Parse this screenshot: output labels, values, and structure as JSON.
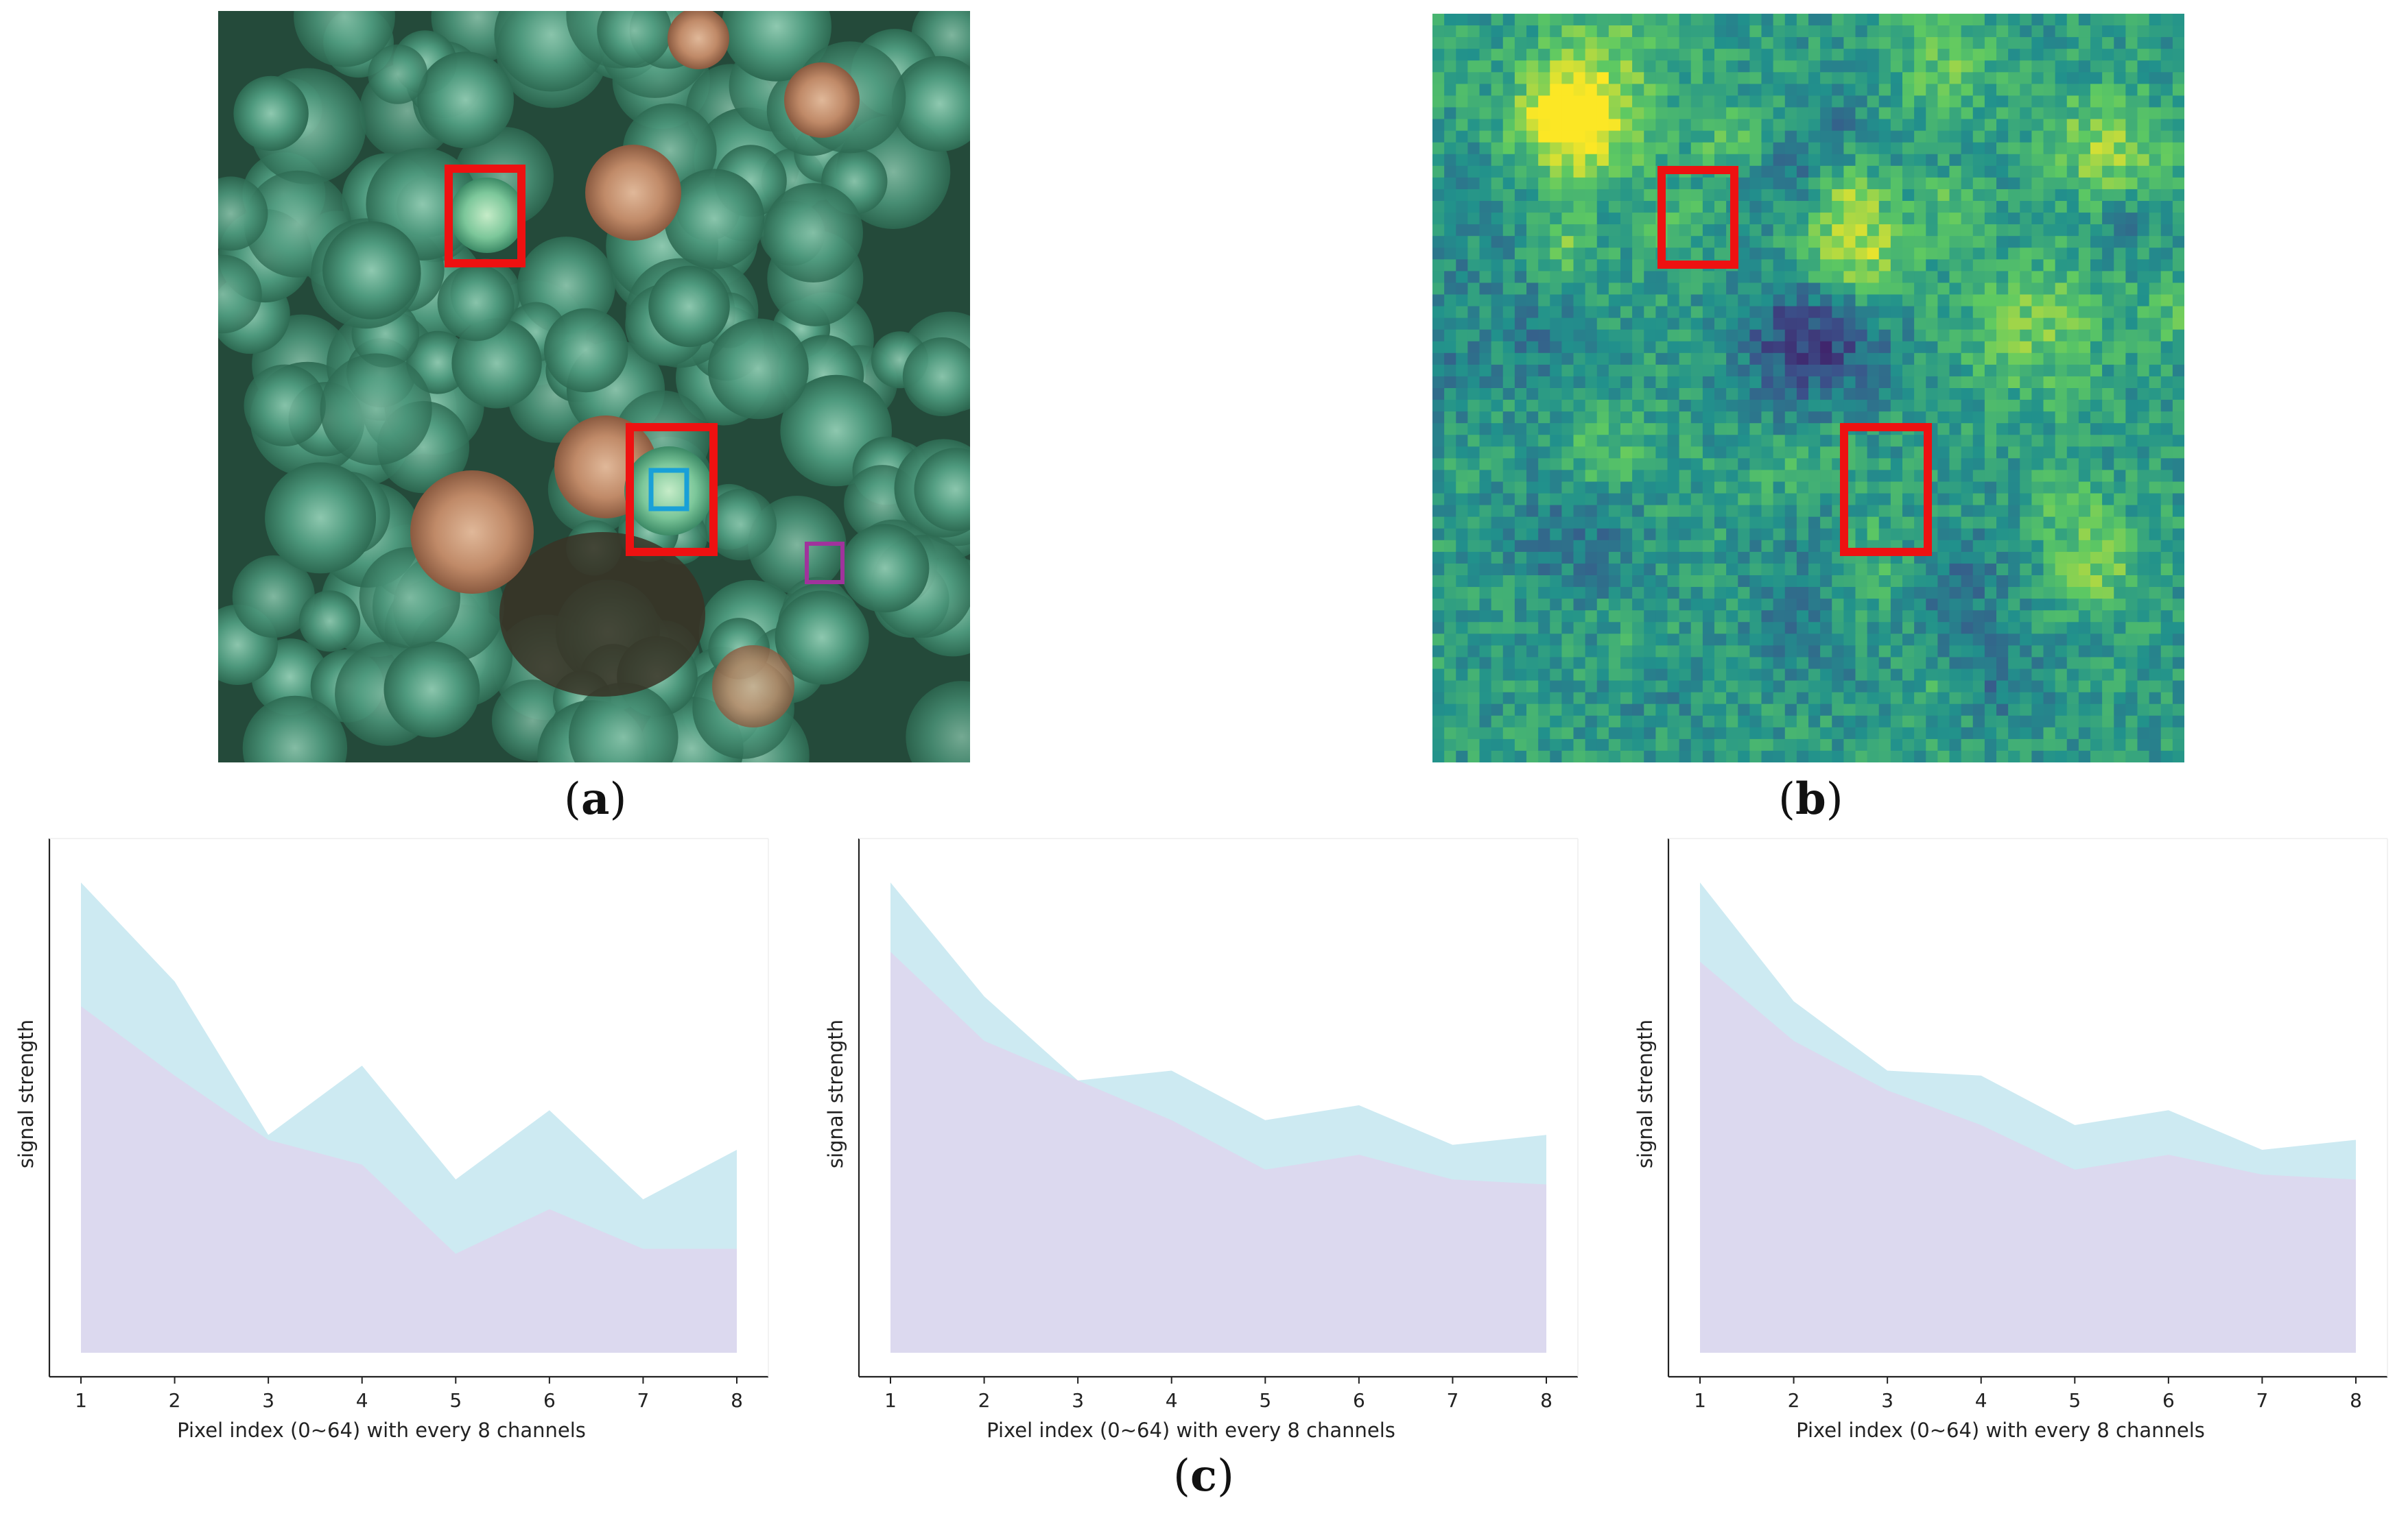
{
  "captions": {
    "a": "a",
    "b": "b",
    "c": "c"
  },
  "panel_a": {
    "description_icon": "forest-canopy-photo",
    "box_colors": {
      "crown": "#ee1111",
      "pixel": "#19a0d8",
      "other": "#a0339c"
    }
  },
  "panel_b": {
    "description_icon": "viridis-heatmap",
    "colormap": [
      "#440154",
      "#3b528b",
      "#21918c",
      "#5ec962",
      "#fde725"
    ]
  },
  "chart_data": [
    {
      "type": "area",
      "title": "",
      "xlabel": "Pixel index (0~64) with every 8 channels",
      "ylabel": "signal strength",
      "x": [
        1,
        2,
        3,
        4,
        5,
        6,
        7,
        8
      ],
      "ylim": [
        0,
        1
      ],
      "series": [
        {
          "name": "blue",
          "color": "#cdeaf2",
          "values": [
            0.95,
            0.75,
            0.44,
            0.58,
            0.35,
            0.49,
            0.31,
            0.41
          ]
        },
        {
          "name": "purple",
          "color": "#dcd8ee",
          "values": [
            0.7,
            0.56,
            0.43,
            0.38,
            0.2,
            0.29,
            0.21,
            0.21
          ]
        }
      ]
    },
    {
      "type": "area",
      "title": "",
      "xlabel": "Pixel index (0~64) with every 8 channels",
      "ylabel": "signal strength",
      "x": [
        1,
        2,
        3,
        4,
        5,
        6,
        7,
        8
      ],
      "ylim": [
        0,
        1
      ],
      "series": [
        {
          "name": "blue",
          "color": "#cdeaf2",
          "values": [
            0.95,
            0.72,
            0.55,
            0.57,
            0.47,
            0.5,
            0.42,
            0.44
          ]
        },
        {
          "name": "purple",
          "color": "#dcd8ee",
          "values": [
            0.81,
            0.63,
            0.55,
            0.47,
            0.37,
            0.4,
            0.35,
            0.34
          ]
        }
      ]
    },
    {
      "type": "area",
      "title": "",
      "xlabel": "Pixel index (0~64) with every 8 channels",
      "ylabel": "signal strength",
      "x": [
        1,
        2,
        3,
        4,
        5,
        6,
        7,
        8
      ],
      "ylim": [
        0,
        1
      ],
      "series": [
        {
          "name": "blue",
          "color": "#cdeaf2",
          "values": [
            0.95,
            0.71,
            0.57,
            0.56,
            0.46,
            0.49,
            0.41,
            0.43
          ]
        },
        {
          "name": "purple",
          "color": "#dcd8ee",
          "values": [
            0.79,
            0.63,
            0.53,
            0.46,
            0.37,
            0.4,
            0.36,
            0.35
          ]
        }
      ]
    }
  ]
}
